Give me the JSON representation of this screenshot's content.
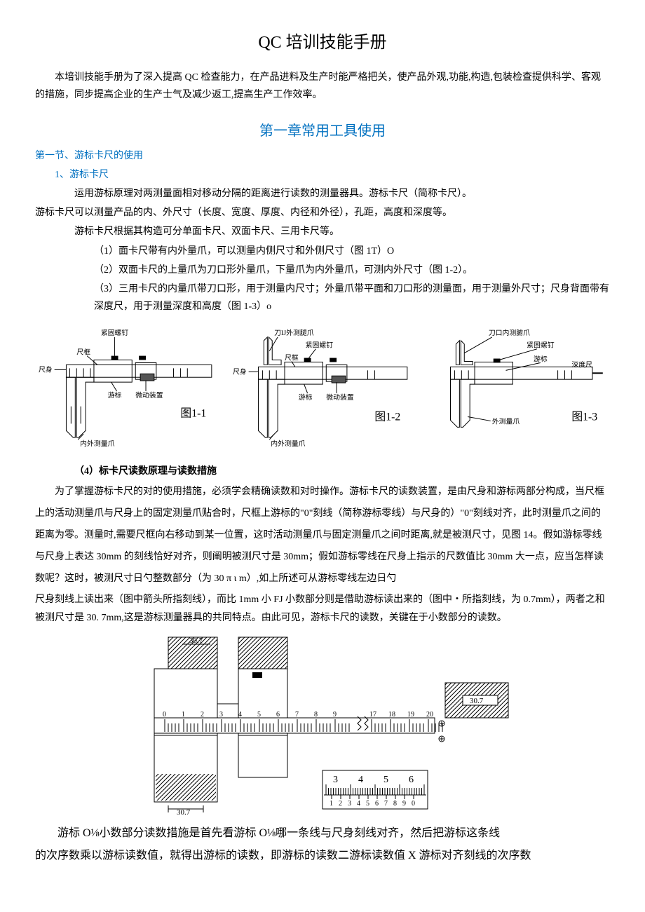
{
  "title": "QC 培训技能手册",
  "intro": "本培训技能手册为了深入提高 QC 检查能力，在产品进料及生产时能严格把关，使产品外观,功能,构造,包装检查提供科学、客观的措施，同步提高企业的生产士气及减少返工,提高生产工作效率。",
  "chapter1_title": "第一章常用工具使用",
  "sec1_title": "第一节、游标卡尺的使用",
  "sec1_1": "1、游标卡尺",
  "p_principle": "运用游标原理对两测量面相对移动分隔的距离进行读数的测量器具。游标卡尺（简称卡尺）。",
  "p_measure": "游标卡尺可以测量产品的内、外尺寸（长度、宽度、厚度、内径和外径），孔距，高度和深度等。",
  "p_types": "游标卡尺根据其构造可分单面卡尺、双面卡尺、三用卡尺等。",
  "li1": "（1）面卡尺带有内外量爪，可以测量内侧尺寸和外侧尺寸（图 1T）O",
  "li2": "（2）双面卡尺的上量爪为刀口形外量爪，下量爪为内外量爪，可测内外尺寸（图 1-2）。",
  "li3": "（3）三用卡尺的内量爪带刀口形，用于测量内尺寸；外量爪带平面和刀口形的测量面，用于测量外尺寸；尺身背面带有深度尺，用于测量深度和高度（图 1-3）o",
  "sec4": "（4）标卡尺读数原理与读数措施",
  "para1": "为了掌握游标卡尺的对的使用措施，必须学会精确读数和对时操作。游标卡尺的读数装置，是由尺身和游标两部分构成，当尺框上的活动测量爪与尺身上的固定测量爪贴合时，尺框上游标的\"0\"刻线（简称游标零线）与尺身的）\"0\"刻线对齐，此时测量爪之间的距离为零。测量时,需要尺框向右移动到某一位置，这时活动测量爪与固定测量爪之间时距离,就是被测尺寸，见图 14。假如游标零线与尺身上表达 30mm 的刻线恰好对齐，则阐明被测尺寸是 30mm；假如游标零线在尺身上指示的尺数值比 30mm 大一点，应当怎样读数呢？这时，被测尺寸日勺整数部分（为 30 π ι m）,如上所述可从游标零线左边日勺",
  "para2": "尺身刻线上读出来（图中箭头所指刻线），而比 1mm 小 FJ 小数部分则是借助游标读出来的（图中・所指刻线，为 0.7mm），两者之和被测尺寸是 30. 7mm,这是游标测量器具的共同特点。由此可见，游标卡尺的读数，关键在于小数部分的读数。",
  "para3_l1": "游标 O⅛小数部分读数措施是首先看游标 O⅛哪一条线与尺身刻线对齐，然后把游标这条线",
  "para3_l2": "的次序数乘以游标读数值，就得出游标的读数，即游标的读数二游标读数值 X 游标对齐刻线的次序数",
  "fig1_labels": {
    "screw": "紧固螺钉",
    "frame": "尺框",
    "body": "尺身",
    "cursor": "游标",
    "micro": "微动装置",
    "jaw": "内外测量爪",
    "caption": "图1-1"
  },
  "fig2_labels": {
    "upper": "刀IJ外测腿爪",
    "screw": "紧固螺钉",
    "frame": "尺框",
    "body": "尺身",
    "cursor": "游标",
    "micro": "微动装置",
    "jaw": "内外测量爪",
    "caption": "图1-2"
  },
  "fig3_labels": {
    "upper": "刀口内测腑爪",
    "screw": "紧固螺钉",
    "cursor": "游标",
    "depth": "深度尺",
    "jaw": "外测量爪",
    "caption": "图1-3"
  },
  "reading_fig": {
    "value": "30.7",
    "scale_main": [
      0,
      1,
      2,
      3,
      4,
      5,
      6,
      7,
      8,
      9,
      17,
      18,
      19,
      20
    ],
    "vernier": [
      1,
      2,
      3,
      4,
      5,
      6,
      7,
      8,
      9,
      0
    ],
    "detail_top": [
      3,
      4,
      5,
      6
    ]
  }
}
